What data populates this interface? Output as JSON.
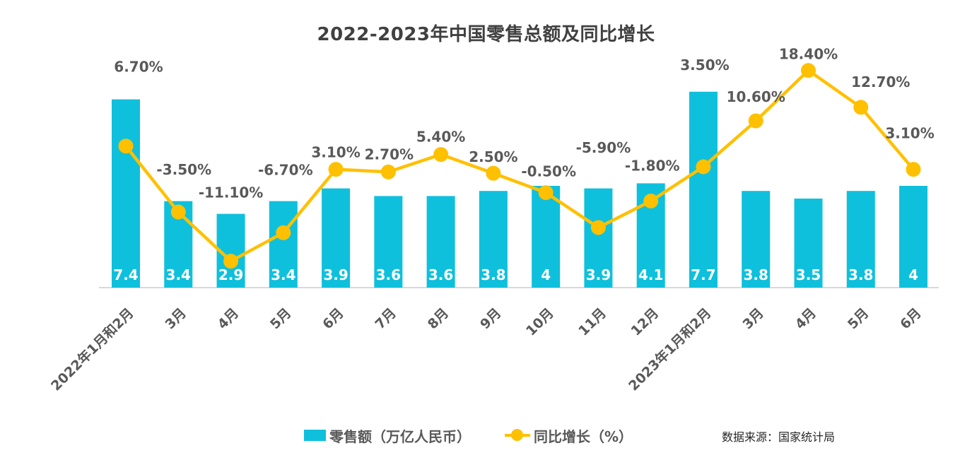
{
  "chart_data": {
    "type": "combo-bar-line",
    "title": "2022-2023年中国零售总额及同比增长",
    "categories": [
      "2022年1月和2月",
      "3月",
      "4月",
      "5月",
      "6月",
      "7月",
      "8月",
      "9月",
      "10月",
      "11月",
      "12月",
      "2023年1月和2月",
      "3月",
      "4月",
      "5月",
      "6月"
    ],
    "series": [
      {
        "name": "零售额（万亿人民币）",
        "type": "bar",
        "values": [
          7.4,
          3.4,
          2.9,
          3.4,
          3.9,
          3.6,
          3.6,
          3.8,
          4,
          3.9,
          4.1,
          7.7,
          3.8,
          3.5,
          3.8,
          4
        ],
        "value_labels": [
          "7.4",
          "3.4",
          "2.9",
          "3.4",
          "3.9",
          "3.6",
          "3.6",
          "3.8",
          "4",
          "3.9",
          "4.1",
          "7.7",
          "3.8",
          "3.5",
          "3.8",
          "4"
        ],
        "color": "#0FC0DC"
      },
      {
        "name": "同比增长（%）",
        "type": "line",
        "values": [
          6.7,
          -3.5,
          -11.1,
          -6.7,
          3.1,
          2.7,
          5.4,
          2.5,
          -0.5,
          -5.9,
          -1.8,
          3.5,
          10.6,
          18.4,
          12.7,
          3.1
        ],
        "value_labels": [
          "6.70%",
          "-3.50%",
          "-11.10%",
          "-6.70%",
          "3.10%",
          "2.70%",
          "5.40%",
          "2.50%",
          "-0.50%",
          "-5.90%",
          "-1.80%",
          "3.50%",
          "10.60%",
          "18.40%",
          "12.70%",
          "3.10%"
        ],
        "color": "#FFC000"
      }
    ],
    "xlabel": "",
    "ylabel": "",
    "bar_axis_range": [
      0,
      8
    ],
    "line_axis_range": [
      -15.5,
      20
    ],
    "grid": false,
    "legend_position": "bottom",
    "axes_visible": false
  },
  "legend": {
    "bar_label": "零售额（万亿人民币）",
    "line_label": "同比增长（%）"
  },
  "source_note": "数据来源：国家统计局",
  "colors": {
    "bar": "#0FC0DC",
    "line": "#FFC000",
    "title_text": "#404040",
    "label_text": "#595959",
    "bar_value_text": "#FFFFFF",
    "axis_line": "#D9D9D9",
    "source_text": "#262626"
  }
}
